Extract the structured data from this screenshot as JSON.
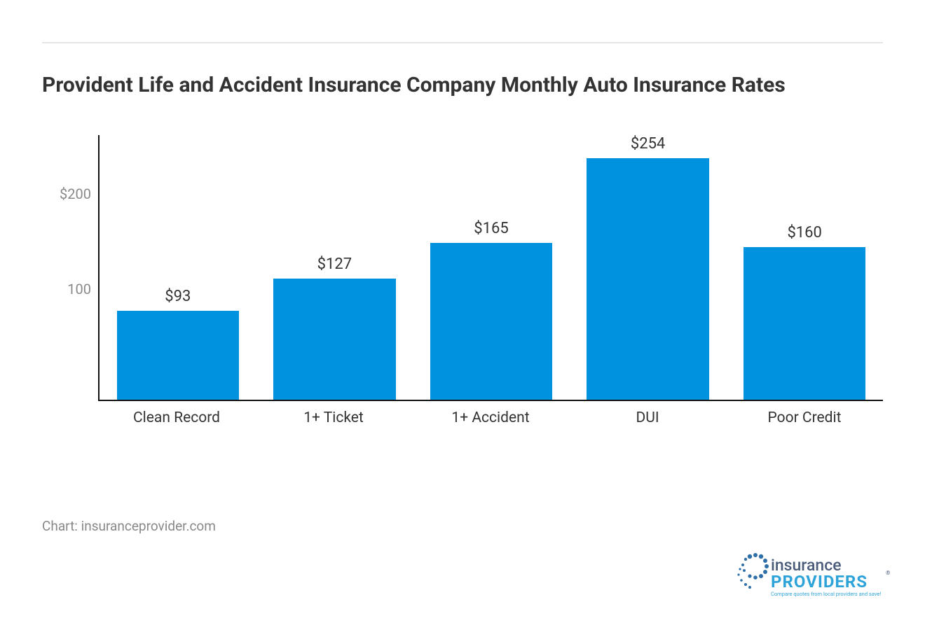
{
  "layout": {
    "rule_color": "#e5e5e5",
    "title_color": "#333333",
    "title_fontsize": 30,
    "axis_color": "#111111",
    "tick_color": "#888888",
    "tick_fontsize": 20,
    "xlabel_color": "#333333",
    "xlabel_fontsize": 21,
    "value_label_color": "#333333",
    "value_label_fontsize": 22,
    "source_color": "#888888",
    "source_fontsize": 19
  },
  "chart": {
    "type": "bar",
    "title": "Provident Life and Accident Insurance Company Monthly Auto Insurance Rates",
    "categories": [
      "Clean Record",
      "1+ Ticket",
      "1+ Accident",
      "DUI",
      "Poor Credit"
    ],
    "values": [
      93,
      127,
      165,
      254,
      160
    ],
    "value_labels": [
      "$93",
      "$127",
      "$165",
      "$254",
      "$160"
    ],
    "bar_color": "#0092df",
    "bar_width": 0.78,
    "background_color": "#ffffff",
    "ymax": 280,
    "yticks": [
      {
        "value": 100,
        "label": "100"
      },
      {
        "value": 200,
        "label": "$200"
      }
    ]
  },
  "source": "Chart: insuranceprovider.com",
  "brand": {
    "word_insurance": "insurance",
    "word_providers": "PROVIDERS",
    "tagline": "Compare quotes from local providers and save!",
    "color_insurance": "#4a5c7a",
    "color_providers": "#2ea3d9",
    "dots_color": "#2f6fa8"
  }
}
